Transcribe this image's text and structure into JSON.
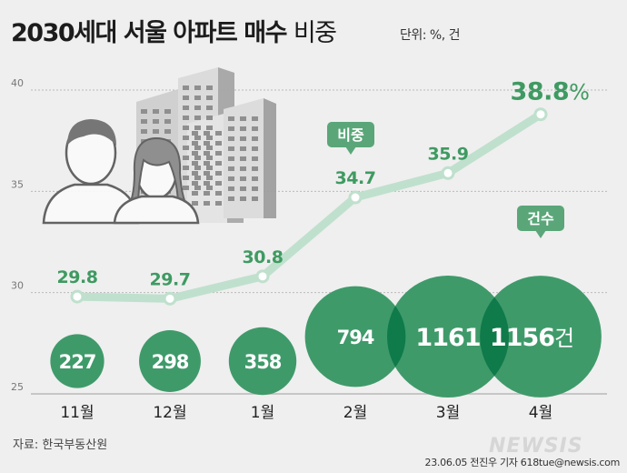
{
  "title_main": "2030세대 서울 아파트 매수",
  "title_light": "비중",
  "unit_label": "단위: %, 건",
  "source": "자료: 한국부동산원",
  "credit": "23.06.05 전진우 기자 618tue@newsis.com",
  "brand": "NEWSIS",
  "colors": {
    "line": "#bfe0cd",
    "point_label": "#3f9a62",
    "bubble": "#3f9a6a",
    "bubble_overlap": "#0f7a4a",
    "grid": "#b9b9b9",
    "callout": "#5aa679"
  },
  "chart_data": {
    "type": "line",
    "categories": [
      "11월",
      "12월",
      "1월",
      "2월",
      "3월",
      "4월"
    ],
    "series": [
      {
        "name": "비중",
        "values": [
          29.8,
          29.7,
          30.8,
          34.7,
          35.9,
          38.8
        ],
        "unit": "%"
      },
      {
        "name": "건수",
        "values": [
          227,
          298,
          358,
          794,
          1161,
          1156
        ],
        "unit": "건"
      }
    ],
    "ylim": [
      25,
      40
    ],
    "yticks": [
      25,
      30,
      35,
      40
    ],
    "grid": true,
    "series_callouts": [
      "비중",
      "건수"
    ],
    "bubble_value_suffix": "건",
    "highlight_suffix": "%"
  }
}
